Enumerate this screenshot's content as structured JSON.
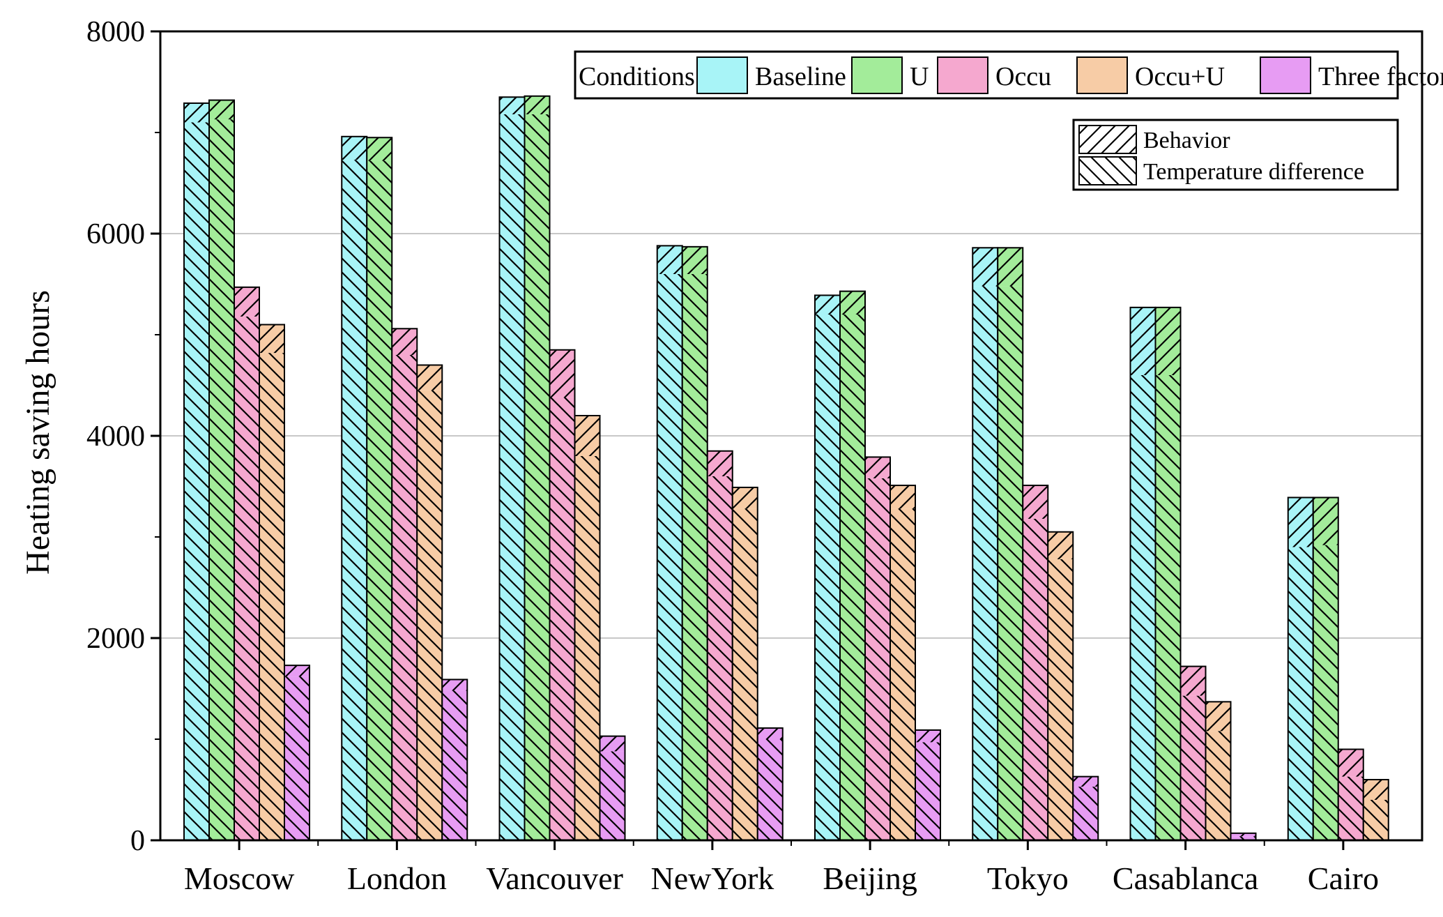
{
  "chart_data": {
    "type": "bar",
    "subtype": "grouped-stacked",
    "title": "",
    "xlabel": "",
    "ylabel": "Heating saving hours",
    "ylim": [
      0,
      8000
    ],
    "yticks": [
      0,
      2000,
      4000,
      6000,
      8000
    ],
    "grid": true,
    "categories": [
      "Moscow",
      "London",
      "Vancouver",
      "NewYork",
      "Beijing",
      "Tokyo",
      "Casablanca",
      "Cairo"
    ],
    "conditions_label": "Conditions:",
    "stack_components": [
      {
        "name": "Temperature difference",
        "pattern": "backslash-hatch",
        "position": "bottom"
      },
      {
        "name": "Behavior",
        "pattern": "slash-hatch",
        "position": "top"
      }
    ],
    "series": [
      {
        "name": "Baseline",
        "color": "#A8F4F7",
        "temperature_difference": [
          7100,
          6730,
          7180,
          5600,
          5200,
          5480,
          4600,
          2900
        ],
        "total": [
          7290,
          6960,
          7350,
          5880,
          5390,
          5860,
          5270,
          3390
        ]
      },
      {
        "name": "U",
        "color": "#A3EC9A",
        "temperature_difference": [
          7130,
          6720,
          7180,
          5600,
          5200,
          5480,
          4600,
          2920
        ],
        "total": [
          7320,
          6950,
          7360,
          5870,
          5430,
          5860,
          5270,
          3390
        ]
      },
      {
        "name": "Occu",
        "color": "#F5A8CF",
        "temperature_difference": [
          5180,
          4800,
          4380,
          3600,
          3580,
          3180,
          1430,
          630
        ],
        "total": [
          5470,
          5060,
          4850,
          3850,
          3790,
          3510,
          1720,
          900
        ]
      },
      {
        "name": "Occu+U",
        "color": "#F7CCA6",
        "temperature_difference": [
          4820,
          4450,
          3800,
          3280,
          3280,
          2780,
          1080,
          400
        ],
        "total": [
          5100,
          4700,
          4200,
          3490,
          3510,
          3050,
          1370,
          600
        ]
      },
      {
        "name": "Three factors",
        "color": "#E79CF3",
        "temperature_difference": [
          1620,
          1480,
          880,
          1000,
          970,
          530,
          40,
          0
        ],
        "total": [
          1730,
          1590,
          1030,
          1110,
          1090,
          630,
          70,
          0
        ]
      }
    ]
  }
}
